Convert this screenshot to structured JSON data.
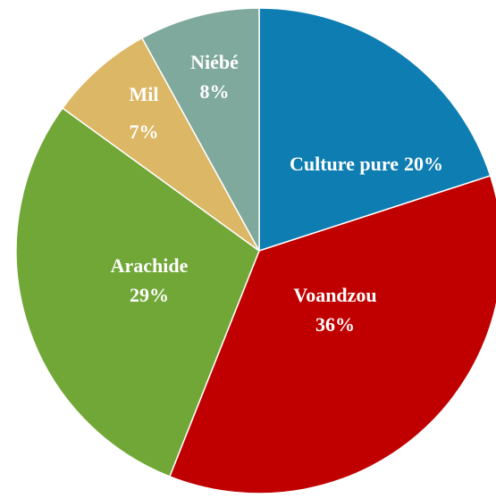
{
  "chart_data": {
    "type": "pie",
    "categories": [
      "Culture pure",
      "Voandzou",
      "Arachide",
      "Mil",
      "Niébé"
    ],
    "values": [
      20,
      36,
      29,
      7,
      8
    ],
    "value_labels": [
      "20%",
      "36%",
      "29%",
      "7%",
      "8%"
    ],
    "colors": [
      "#0e7db2",
      "#c00000",
      "#71a737",
      "#dcb766",
      "#7fa99c"
    ]
  }
}
